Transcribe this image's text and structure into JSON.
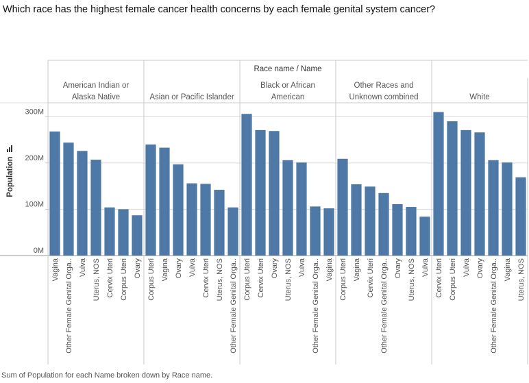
{
  "question": "Which race has the highest female cancer health concerns by each female genital system cancer?",
  "footer": "Sum of Population for each Name broken down by Race name.",
  "colors": {
    "bar": "#4e79a7",
    "grid": "#d9d9d9",
    "border": "#c8c8c8",
    "text": "#555555"
  },
  "chart_data": {
    "type": "bar",
    "header": "Race name / Name",
    "ylabel": "Population",
    "ylim": [
      0,
      330
    ],
    "yticks": [
      {
        "value": 0,
        "label": "0M"
      },
      {
        "value": 100,
        "label": "100M"
      },
      {
        "value": 200,
        "label": "200M"
      },
      {
        "value": 300,
        "label": "300M"
      }
    ],
    "grid": true,
    "panels": [
      {
        "name": [
          "American Indian or",
          "Alaska Native"
        ],
        "categories": [
          "Vagina",
          "Other Female Genital Orga..",
          "Vulva",
          "Uterus, NOS",
          "Cervix Uteri",
          "Corpus Uteri",
          "Ovary"
        ],
        "values": [
          268,
          244,
          226,
          207,
          104,
          100,
          87
        ]
      },
      {
        "name": [
          "Asian or Pacific Islander"
        ],
        "categories": [
          "Corpus Uteri",
          "Vagina",
          "Ovary",
          "Vulva",
          "Cervix Uteri",
          "Uterus, NOS",
          "Other Female Genital Orga.."
        ],
        "values": [
          240,
          233,
          197,
          156,
          155,
          142,
          104
        ]
      },
      {
        "name": [
          "Black or African",
          "American"
        ],
        "categories": [
          "Corpus Uteri",
          "Cervix Uteri",
          "Ovary",
          "Uterus, NOS",
          "Vulva",
          "Other Female Genital Orga..",
          "Vagina"
        ],
        "values": [
          306,
          271,
          269,
          206,
          201,
          106,
          102
        ]
      },
      {
        "name": [
          "Other Races and",
          "Unknown combined"
        ],
        "categories": [
          "Corpus Uteri",
          "Vagina",
          "Cervix Uteri",
          "Other Female Genital Orga..",
          "Ovary",
          "Uterus, NOS",
          "Vulva"
        ],
        "values": [
          209,
          154,
          149,
          135,
          111,
          105,
          84
        ]
      },
      {
        "name": [
          "White"
        ],
        "categories": [
          "Cervix Uteri",
          "Corpus Uteri",
          "Vulva",
          "Ovary",
          "Other Female Genital Orga..",
          "Vagina",
          "Uterus, NOS"
        ],
        "values": [
          310,
          290,
          271,
          266,
          206,
          201,
          169
        ]
      }
    ]
  }
}
